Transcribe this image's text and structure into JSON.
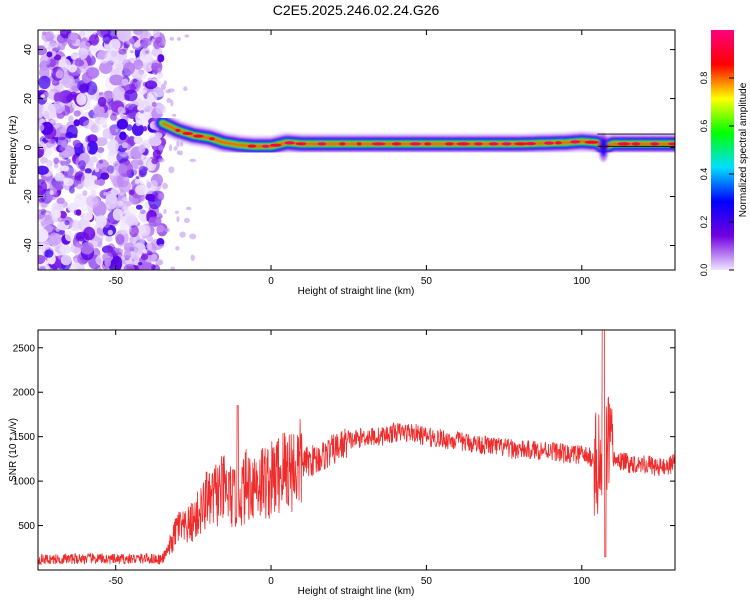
{
  "title": "C2E5.2025.246.02.24.G26",
  "chart_data": [
    {
      "type": "heatmap",
      "xlabel": "Height of straight line (km)",
      "ylabel": "Frequency (Hz)",
      "xlim": [
        -75,
        130
      ],
      "ylim": [
        -50,
        48
      ],
      "xticks": [
        -50,
        0,
        50,
        100
      ],
      "yticks": [
        -40,
        -20,
        0,
        20,
        40
      ],
      "grid": false,
      "colorbar": {
        "label": "Normalized spectral amplitude",
        "range": [
          0,
          1
        ],
        "ticks": [
          0.0,
          0.2,
          0.4,
          0.6,
          0.8
        ],
        "colormap": [
          "#f0e6ff",
          "#7000e0",
          "#0000ff",
          "#00e0ff",
          "#00ff00",
          "#ffff00",
          "#ff0000",
          "#ff0080"
        ]
      },
      "ridge": {
        "x": [
          -35,
          -30,
          -25,
          -20,
          -15,
          -10,
          -5,
          0,
          5,
          10,
          20,
          30,
          50,
          80,
          95,
          100,
          105,
          107,
          110,
          130
        ],
        "frequency": [
          10,
          7,
          5,
          4,
          2,
          1,
          0.5,
          0.5,
          2,
          1.5,
          1.5,
          1.5,
          1.5,
          1.5,
          2,
          2.5,
          2,
          0,
          1.5,
          1.5
        ]
      }
    },
    {
      "type": "line",
      "xlabel": "Height of straight line (km)",
      "ylabel": "SNR (10 * v/v)",
      "xlim": [
        -75,
        130
      ],
      "ylim": [
        0,
        2700
      ],
      "xticks": [
        -50,
        0,
        50,
        100
      ],
      "yticks": [
        500,
        1000,
        1500,
        2000,
        2500
      ],
      "grid": false,
      "series": [
        {
          "color": "#ee2c2c",
          "x": [
            -75,
            -70,
            -60,
            -50,
            -40,
            -35,
            -32,
            -30,
            -28,
            -25,
            -22,
            -20,
            -18,
            -15,
            -12,
            -10,
            -8,
            -5,
            -2,
            0,
            3,
            5,
            8,
            10,
            15,
            20,
            25,
            30,
            35,
            40,
            45,
            50,
            60,
            70,
            80,
            90,
            95,
            100,
            104,
            106,
            107,
            108,
            109,
            110,
            115,
            120,
            125,
            130
          ],
          "y": [
            120,
            120,
            130,
            120,
            130,
            120,
            300,
            500,
            450,
            550,
            700,
            750,
            850,
            900,
            800,
            850,
            950,
            1000,
            1000,
            1000,
            1100,
            1150,
            1150,
            1200,
            1250,
            1350,
            1450,
            1500,
            1500,
            1550,
            1550,
            1500,
            1450,
            1400,
            1350,
            1350,
            1300,
            1300,
            1250,
            1000,
            1300,
            1400,
            1200,
            1250,
            1200,
            1200,
            1150,
            1200
          ]
        }
      ]
    }
  ]
}
